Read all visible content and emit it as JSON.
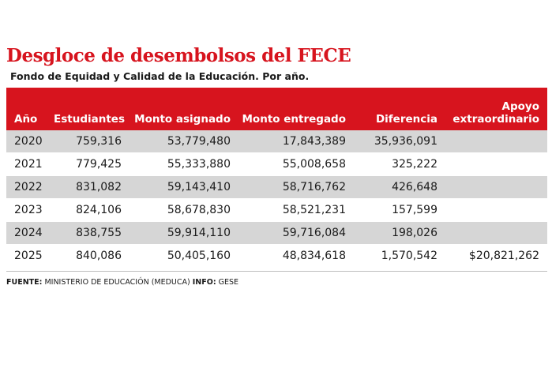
{
  "title": "Desgloce de desembolsos del FECE",
  "subtitle": "Fondo de Equidad y Calidad de la Educación. Por año.",
  "table": {
    "headers": {
      "year": "Año",
      "students": "Estudiantes",
      "assigned": "Monto asignado",
      "delivered": "Monto entregado",
      "difference": "Diferencia",
      "support_line1": "Apoyo",
      "support_line2": "extraordinario"
    },
    "rows": [
      {
        "year": "2020",
        "students": "759,316",
        "assigned": "53,779,480",
        "delivered": "17,843,389",
        "difference": "35,936,091",
        "support": ""
      },
      {
        "year": "2021",
        "students": "779,425",
        "assigned": "55,333,880",
        "delivered": "55,008,658",
        "difference": "325,222",
        "support": ""
      },
      {
        "year": "2022",
        "students": "831,082",
        "assigned": "59,143,410",
        "delivered": "58,716,762",
        "difference": "426,648",
        "support": ""
      },
      {
        "year": "2023",
        "students": "824,106",
        "assigned": "58,678,830",
        "delivered": "58,521,231",
        "difference": "157,599",
        "support": ""
      },
      {
        "year": "2024",
        "students": "838,755",
        "assigned": "59,914,110",
        "delivered": "59,716,084",
        "difference": "198,026",
        "support": ""
      },
      {
        "year": "2025",
        "students": "840,086",
        "assigned": "50,405,160",
        "delivered": "48,834,618",
        "difference": "1,570,542",
        "support": "$20,821,262"
      }
    ]
  },
  "footer": {
    "source_label": "FUENTE:",
    "source_text": "MINISTERIO DE EDUCACIÓN (MEDUCA)",
    "info_label": "INFO:",
    "info_text": "GESE"
  },
  "colors": {
    "accent_red": "#d7141e",
    "row_stripe": "#d6d6d6"
  }
}
